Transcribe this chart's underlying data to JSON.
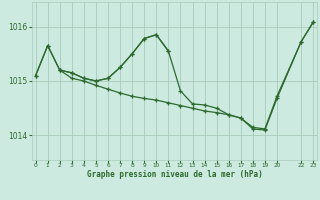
{
  "background_color": "#cdeae0",
  "grid_color": "#a8ccba",
  "line_color": "#2d6a2d",
  "ylim": [
    1013.55,
    1016.45
  ],
  "yticks": [
    1014,
    1015,
    1016
  ],
  "xlim": [
    -0.3,
    23.3
  ],
  "xticks": [
    0,
    1,
    2,
    3,
    4,
    5,
    6,
    7,
    8,
    9,
    10,
    11,
    12,
    13,
    14,
    15,
    16,
    17,
    18,
    19,
    20,
    22,
    23
  ],
  "xlabel": "Graphe pression niveau de la mer (hPa)",
  "series": [
    {
      "x": [
        0,
        1,
        2,
        3,
        4,
        5,
        6,
        7,
        8,
        9,
        10,
        11
      ],
      "y": [
        1015.1,
        1015.65,
        1015.2,
        1015.15,
        1015.05,
        1015.0,
        1015.05,
        1015.25,
        1015.5,
        1015.78,
        1015.85,
        1015.55
      ]
    },
    {
      "x": [
        2,
        3,
        4,
        5,
        6,
        7,
        8,
        9,
        10,
        11,
        12,
        13,
        14,
        15,
        16,
        17,
        18,
        19,
        20,
        22,
        23
      ],
      "y": [
        1015.2,
        1015.05,
        1015.0,
        1014.92,
        1014.85,
        1014.78,
        1014.72,
        1014.68,
        1014.65,
        1014.6,
        1014.55,
        1014.5,
        1014.45,
        1014.42,
        1014.38,
        1014.32,
        1014.15,
        1014.12,
        1014.72,
        1015.72,
        1016.08
      ]
    },
    {
      "x": [
        0,
        1,
        2,
        3,
        4,
        5,
        6,
        7,
        8,
        9,
        10,
        11,
        12,
        13,
        14,
        15,
        16,
        17,
        18,
        19,
        20,
        22,
        23
      ],
      "y": [
        1015.1,
        1015.65,
        1015.2,
        1015.15,
        1015.05,
        1015.0,
        1015.05,
        1015.25,
        1015.5,
        1015.78,
        1015.85,
        1015.55,
        1014.82,
        1014.58,
        1014.56,
        1014.5,
        1014.38,
        1014.32,
        1014.12,
        1014.1,
        1014.68,
        1015.72,
        1016.08
      ]
    }
  ]
}
